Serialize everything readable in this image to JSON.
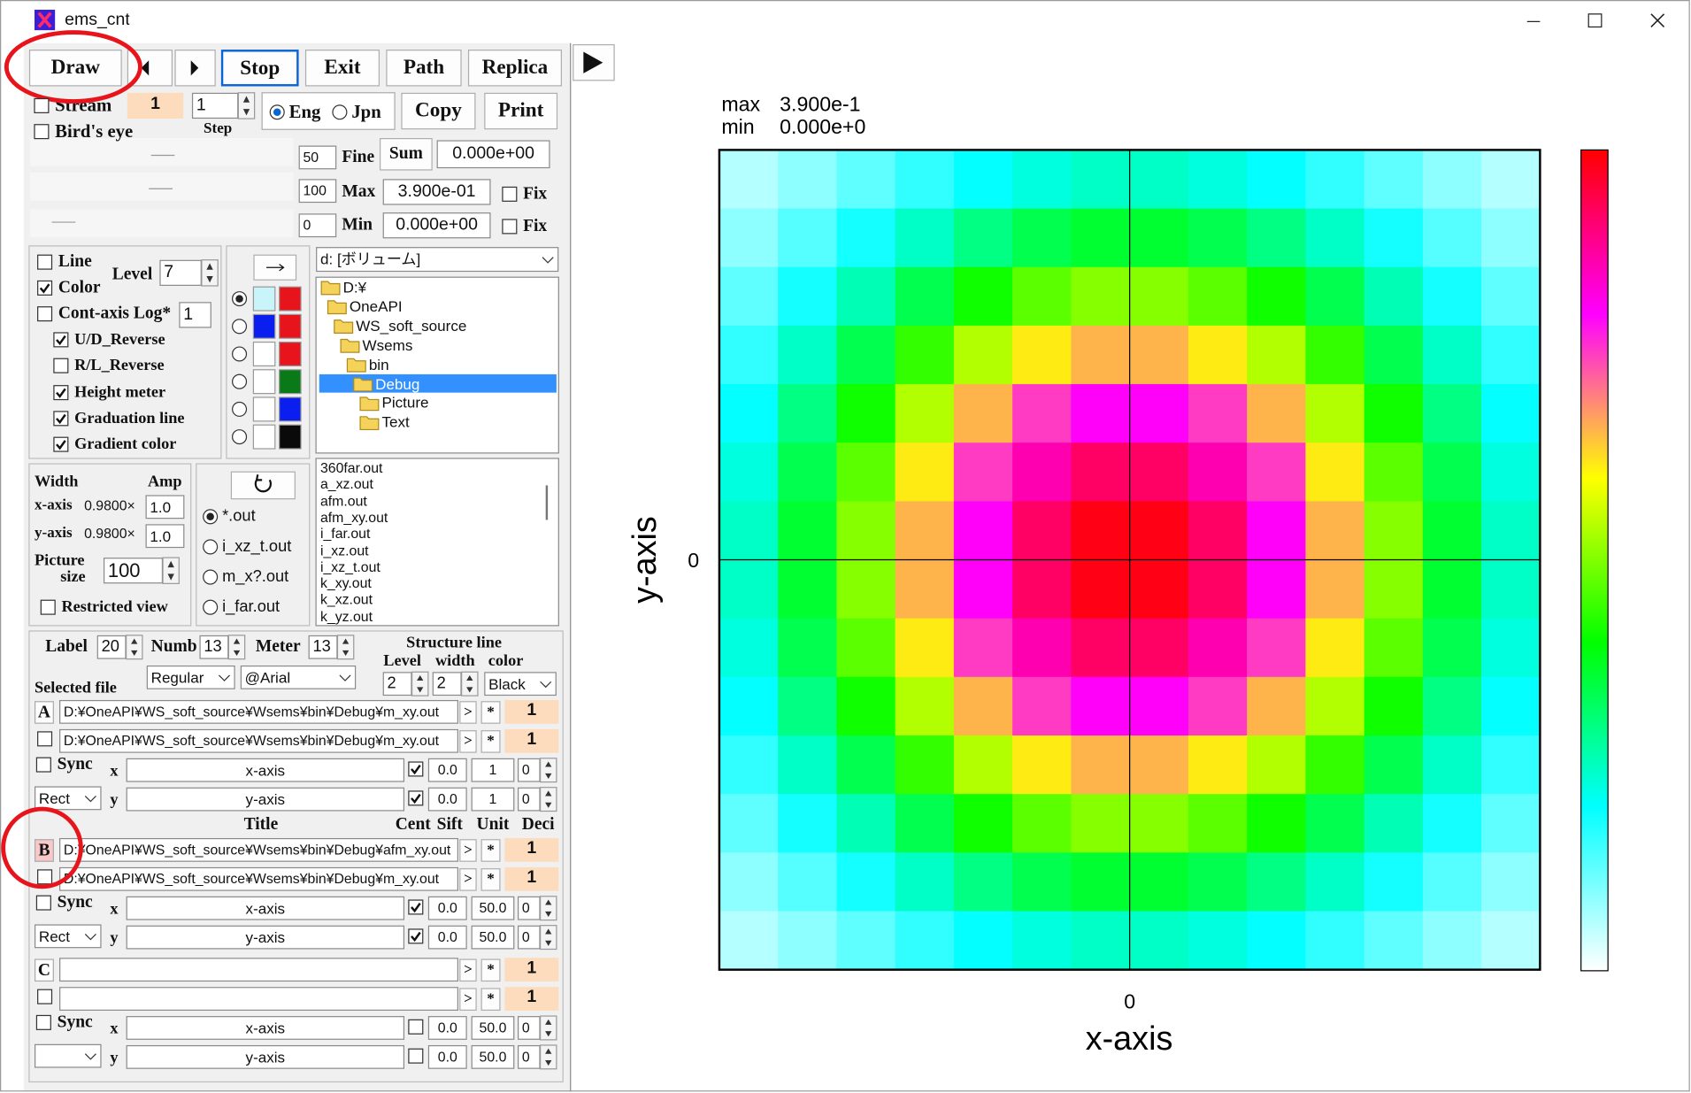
{
  "window": {
    "title": "ems_cnt"
  },
  "toolbar": {
    "draw": "Draw",
    "stop": "Stop",
    "exit": "Exit",
    "path": "Path",
    "replica": "Replica"
  },
  "view": {
    "stream": "Stream",
    "stream_value": "1",
    "step_value": "1",
    "step": "Step",
    "birds_eye": "Bird's eye",
    "eng": "Eng",
    "jpn": "Jpn",
    "copy": "Copy",
    "print": "Print"
  },
  "range": {
    "fine_value": "50",
    "fine": "Fine",
    "sum": "Sum",
    "sum_value": "0.000e+00",
    "max_slider": "100",
    "max": "Max",
    "max_value": "3.900e-01",
    "fix_max": "Fix",
    "min_slider": "0",
    "min": "Min",
    "min_value": "0.000e+00",
    "fix_min": "Fix"
  },
  "contour": {
    "line": "Line",
    "color": "Color",
    "level": "Level",
    "level_value": "7",
    "cont_axis_log": "Cont-axis Log*",
    "log_value": "1",
    "ud_reverse": "U/D_Reverse",
    "rl_reverse": "R/L_Reverse",
    "height_meter": "Height meter",
    "graduation_line": "Graduation line",
    "gradient_color": "Gradient color"
  },
  "browser": {
    "drive": "d: [ボリューム]",
    "folders": [
      "D:¥",
      "OneAPI",
      "WS_soft_source",
      "Wsems",
      "bin",
      "Debug",
      "Picture",
      "Text"
    ],
    "files": [
      "360far.out",
      "a_xz.out",
      "afm.out",
      "afm_xy.out",
      "i_far.out",
      "i_xz.out",
      "i_xz_t.out",
      "k_xy.out",
      "k_xz.out",
      "k_yz.out"
    ]
  },
  "size": {
    "width": "Width",
    "amp": "Amp",
    "x_axis": "x-axis",
    "x_width": "0.9800×",
    "x_amp": "1.0",
    "y_axis": "y-axis",
    "y_width": "0.9800×",
    "y_amp": "1.0",
    "picture": "Picture",
    "size": "size",
    "picture_value": "100",
    "restricted_view": "Restricted view"
  },
  "filters": [
    "*.out",
    "i_xz_t.out",
    "m_x?.out",
    "i_far.out"
  ],
  "font": {
    "label": "Label",
    "label_value": "20",
    "numb": "Numb",
    "numb_value": "13",
    "meter": "Meter",
    "meter_value": "13",
    "structure_line": "Structure line",
    "level": "Level",
    "width": "width",
    "color": "color",
    "level_value": "2",
    "width_value": "2",
    "color_value": "Black",
    "selected_file": "Selected file",
    "style": "Regular",
    "face": "@Arial"
  },
  "file_sets": {
    "header": {
      "title": "Title",
      "cent": "Cent",
      "sift": "Sift",
      "unit": "Unit",
      "deci": "Deci"
    },
    "groups": [
      {
        "id": "A",
        "files": [
          {
            "path": "D:¥OneAPI¥WS_soft_source¥Wsems¥bin¥Debug¥m_xy.out",
            "open": ">",
            "select": "*",
            "deci": "1"
          },
          {
            "path": "D:¥OneAPI¥WS_soft_source¥Wsems¥bin¥Debug¥m_xy.out",
            "open": ">",
            "select": "*",
            "deci": "1"
          }
        ],
        "sync": "Sync",
        "shape": "Rect",
        "axes": [
          {
            "axis": "x",
            "title": "x-axis",
            "cent": "0.0",
            "unit": "1",
            "deci": "0"
          },
          {
            "axis": "y",
            "title": "y-axis",
            "cent": "0.0",
            "unit": "1",
            "deci": "0"
          }
        ]
      },
      {
        "id": "B",
        "files": [
          {
            "path": "D:¥OneAPI¥WS_soft_source¥Wsems¥bin¥Debug¥afm_xy.out",
            "open": ">",
            "select": "*",
            "deci": "1"
          },
          {
            "path": "D:¥OneAPI¥WS_soft_source¥Wsems¥bin¥Debug¥m_xy.out",
            "open": ">",
            "select": "*",
            "deci": "1"
          }
        ],
        "sync": "Sync",
        "shape": "Rect",
        "axes": [
          {
            "axis": "x",
            "title": "x-axis",
            "cent": "0.0",
            "unit": "50.0",
            "deci": "0"
          },
          {
            "axis": "y",
            "title": "y-axis",
            "cent": "0.0",
            "unit": "50.0",
            "deci": "0"
          }
        ]
      },
      {
        "id": "C",
        "files": [
          {
            "open": ">",
            "select": "*",
            "deci": "1"
          },
          {
            "open": ">",
            "select": "*",
            "deci": "1"
          }
        ],
        "sync": "Sync",
        "axes": [
          {
            "axis": "x",
            "title": "x-axis",
            "cent": "0.0",
            "unit": "50.0",
            "deci": "0"
          },
          {
            "axis": "y",
            "title": "y-axis",
            "cent": "0.0",
            "unit": "50.0",
            "deci": "0"
          }
        ]
      }
    ]
  },
  "chart_data": {
    "type": "heatmap",
    "max_label": "max",
    "max": {
      "value": 0.39,
      "label": "3.900e-1"
    },
    "min_label": "min",
    "min": {
      "value": 0,
      "label": "0.000e+0"
    },
    "xlabel": "x-axis",
    "ylabel": "y-axis",
    "xlim": [
      -7,
      7
    ],
    "ylim": [
      -7,
      7
    ],
    "xticks": [
      0
    ],
    "yticks": [
      0
    ],
    "colormap": [
      "#ffffff",
      "#00ffff",
      "#00ff00",
      "#ffff00",
      "#ff00ff",
      "#ff0000"
    ],
    "z": [
      [
        0.023,
        0.035,
        0.049,
        0.063,
        0.077,
        0.088,
        0.095,
        0.095,
        0.088,
        0.077,
        0.063,
        0.049,
        0.035,
        0.023
      ],
      [
        0.035,
        0.052,
        0.072,
        0.095,
        0.116,
        0.132,
        0.141,
        0.141,
        0.132,
        0.116,
        0.095,
        0.072,
        0.052,
        0.035
      ],
      [
        0.049,
        0.072,
        0.101,
        0.132,
        0.161,
        0.184,
        0.197,
        0.197,
        0.184,
        0.161,
        0.132,
        0.101,
        0.072,
        0.049
      ],
      [
        0.063,
        0.095,
        0.132,
        0.172,
        0.21,
        0.24,
        0.257,
        0.257,
        0.24,
        0.21,
        0.172,
        0.132,
        0.095,
        0.063
      ],
      [
        0.077,
        0.116,
        0.161,
        0.21,
        0.257,
        0.294,
        0.314,
        0.314,
        0.294,
        0.257,
        0.21,
        0.161,
        0.116,
        0.077
      ],
      [
        0.088,
        0.132,
        0.184,
        0.24,
        0.294,
        0.336,
        0.359,
        0.359,
        0.336,
        0.294,
        0.24,
        0.184,
        0.132,
        0.088
      ],
      [
        0.095,
        0.141,
        0.197,
        0.257,
        0.314,
        0.359,
        0.384,
        0.384,
        0.359,
        0.314,
        0.257,
        0.197,
        0.141,
        0.095
      ],
      [
        0.095,
        0.141,
        0.197,
        0.257,
        0.314,
        0.359,
        0.384,
        0.384,
        0.359,
        0.314,
        0.257,
        0.197,
        0.141,
        0.095
      ],
      [
        0.088,
        0.132,
        0.184,
        0.24,
        0.294,
        0.336,
        0.359,
        0.359,
        0.336,
        0.294,
        0.24,
        0.184,
        0.132,
        0.088
      ],
      [
        0.077,
        0.116,
        0.161,
        0.21,
        0.257,
        0.294,
        0.314,
        0.314,
        0.294,
        0.257,
        0.21,
        0.161,
        0.116,
        0.077
      ],
      [
        0.063,
        0.095,
        0.132,
        0.172,
        0.21,
        0.24,
        0.257,
        0.257,
        0.24,
        0.21,
        0.172,
        0.132,
        0.095,
        0.063
      ],
      [
        0.049,
        0.072,
        0.101,
        0.132,
        0.161,
        0.184,
        0.197,
        0.197,
        0.184,
        0.161,
        0.132,
        0.101,
        0.072,
        0.049
      ],
      [
        0.035,
        0.052,
        0.072,
        0.095,
        0.116,
        0.132,
        0.141,
        0.141,
        0.132,
        0.116,
        0.095,
        0.072,
        0.052,
        0.035
      ],
      [
        0.023,
        0.035,
        0.049,
        0.063,
        0.077,
        0.088,
        0.095,
        0.095,
        0.088,
        0.077,
        0.063,
        0.049,
        0.035,
        0.023
      ]
    ]
  }
}
